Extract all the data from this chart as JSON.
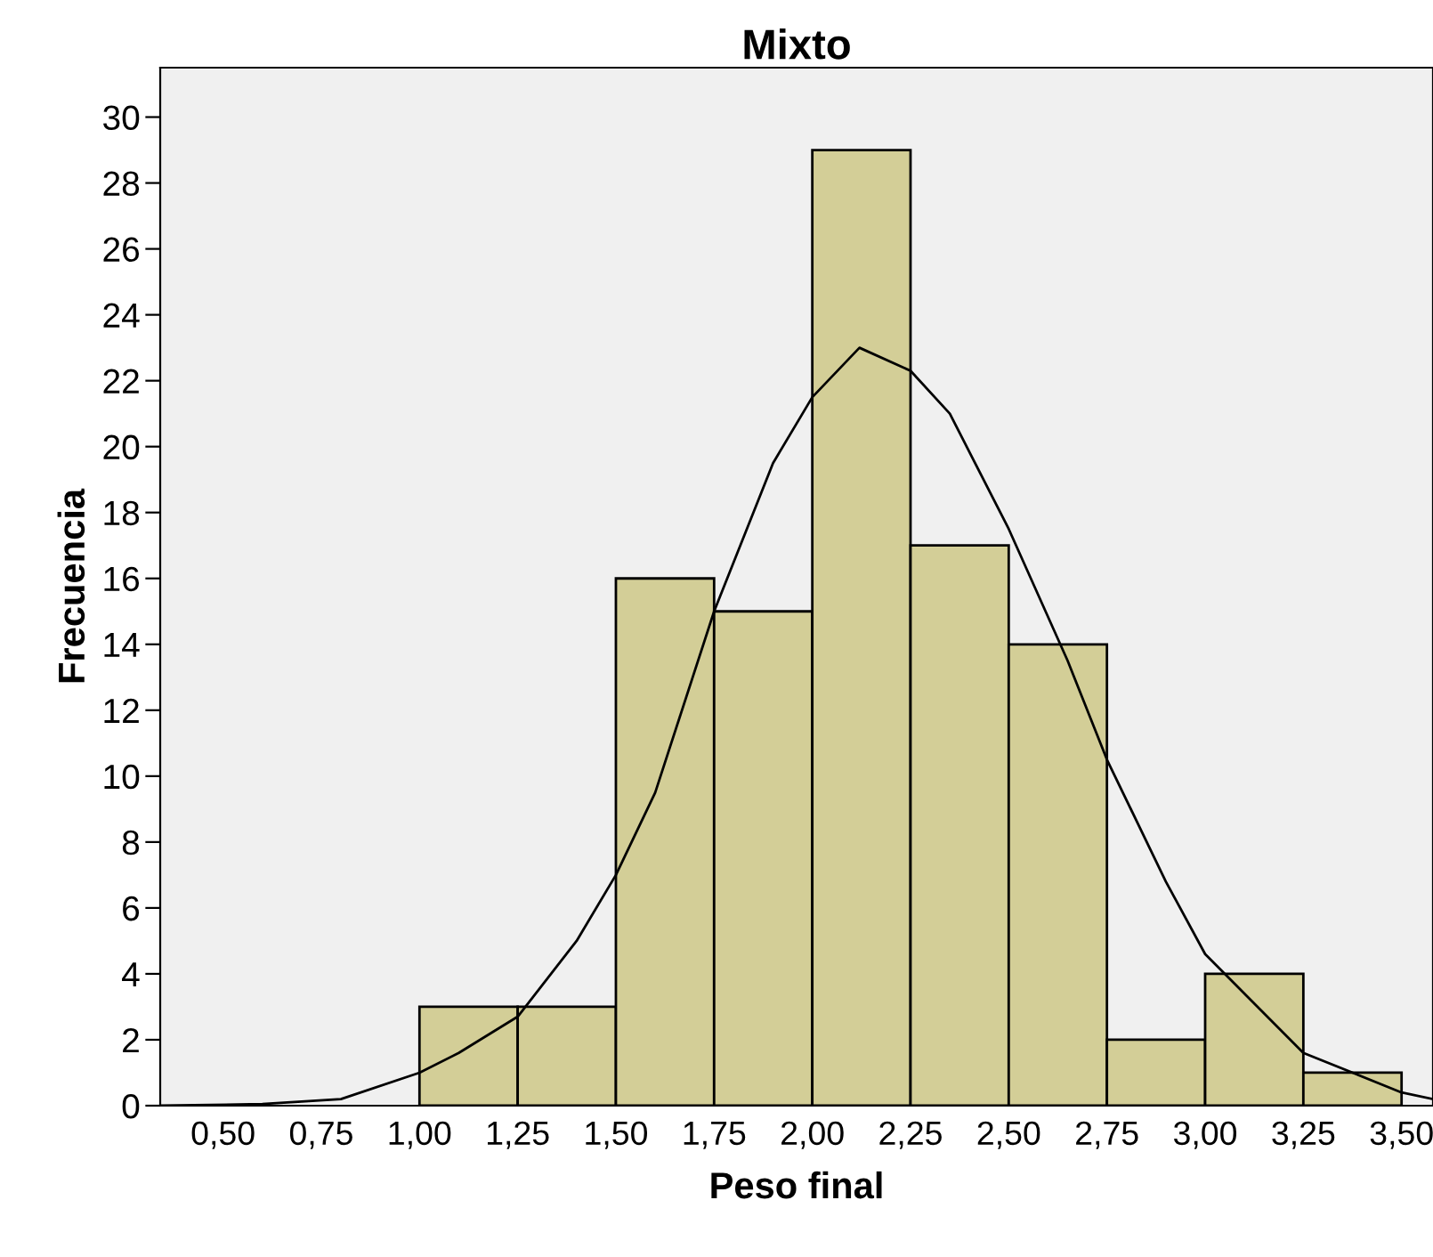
{
  "chart_data": {
    "type": "histogram",
    "title": "Mixto",
    "xlabel": "Peso final",
    "ylabel": "Frecuencia",
    "series": [
      {
        "color": "#d3ce97",
        "bins": [
          1.0,
          1.25,
          1.5,
          1.75,
          2.0,
          2.25,
          2.5,
          2.75,
          3.0,
          3.25,
          3.5
        ],
        "values": [
          3,
          3,
          16,
          15,
          29,
          17,
          14,
          2,
          4,
          1
        ]
      },
      {
        "type": "line",
        "color": "#000000",
        "x": [
          0.34,
          0.6,
          0.8,
          1.0,
          1.1,
          1.25,
          1.4,
          1.5,
          1.6,
          1.75,
          1.9,
          2.0,
          2.12,
          2.25,
          2.35,
          2.5,
          2.65,
          2.75,
          2.9,
          3.0,
          3.25,
          3.5,
          3.58
        ],
        "values": [
          0,
          0.05,
          0.2,
          1.0,
          1.6,
          2.7,
          5,
          7,
          9.5,
          15,
          19.5,
          21.5,
          23,
          22.3,
          21,
          17.5,
          13.5,
          10.5,
          6.8,
          4.6,
          1.6,
          0.4,
          0.2
        ]
      }
    ],
    "xlim": [
      0.34,
      3.58
    ],
    "ylim": [
      0,
      31.5
    ],
    "xticks": [
      {
        "value": 0.5,
        "label": "0,50"
      },
      {
        "value": 0.75,
        "label": "0,75"
      },
      {
        "value": 1.0,
        "label": "1,00"
      },
      {
        "value": 1.25,
        "label": "1,25"
      },
      {
        "value": 1.5,
        "label": "1,50"
      },
      {
        "value": 1.75,
        "label": "1,75"
      },
      {
        "value": 2.0,
        "label": "2,00"
      },
      {
        "value": 2.25,
        "label": "2,25"
      },
      {
        "value": 2.5,
        "label": "2,50"
      },
      {
        "value": 2.75,
        "label": "2,75"
      },
      {
        "value": 3.0,
        "label": "3,00"
      },
      {
        "value": 3.25,
        "label": "3,25"
      },
      {
        "value": 3.5,
        "label": "3,50"
      }
    ],
    "yticks": [
      0,
      2,
      4,
      6,
      8,
      10,
      12,
      14,
      16,
      18,
      20,
      22,
      24,
      26,
      28,
      30
    ],
    "grid": false,
    "legend": false
  }
}
